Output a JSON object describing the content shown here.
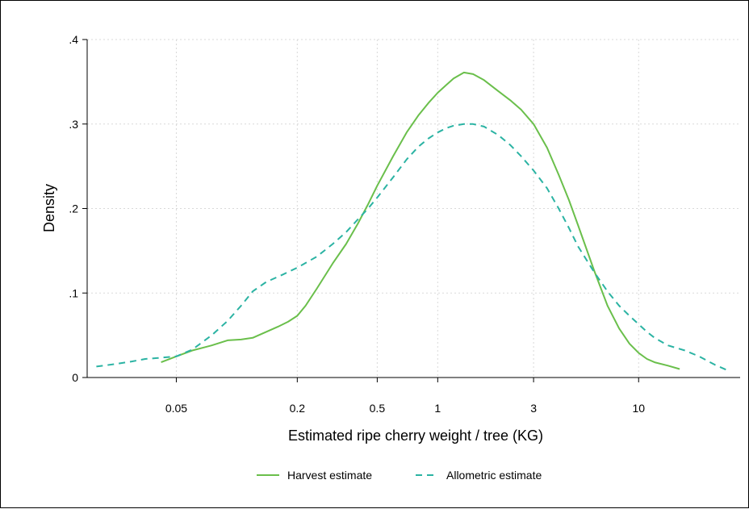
{
  "chart_data": {
    "type": "line",
    "xlabel": "Estimated ripe cherry weight / tree (KG)",
    "ylabel": "Density",
    "x_scale": "log",
    "xlim": [
      0.018,
      32
    ],
    "ylim": [
      0,
      0.4
    ],
    "x_ticks": [
      0.05,
      0.2,
      0.5,
      1,
      3,
      10
    ],
    "x_tick_labels": [
      "0.05",
      "0.2",
      "0.5",
      "1",
      "3",
      "10"
    ],
    "y_ticks": [
      0,
      0.1,
      0.2,
      0.3,
      0.4
    ],
    "y_tick_labels": [
      "0",
      ".1",
      ".2",
      ".3",
      ".4"
    ],
    "grid": "horizontal dotted",
    "legend_position": "bottom",
    "series": [
      {
        "name": "Harvest estimate",
        "color": "#6abf4b",
        "dash": "solid",
        "x": [
          0.042,
          0.05,
          0.06,
          0.075,
          0.09,
          0.105,
          0.12,
          0.14,
          0.16,
          0.18,
          0.2,
          0.22,
          0.25,
          0.3,
          0.35,
          0.4,
          0.45,
          0.5,
          0.6,
          0.7,
          0.8,
          0.9,
          1.0,
          1.1,
          1.2,
          1.35,
          1.5,
          1.7,
          2.0,
          2.3,
          2.6,
          3.0,
          3.5,
          4.0,
          4.5,
          5.0,
          6.0,
          7.0,
          8.0,
          9.0,
          10.0,
          11.0,
          12.0,
          14.0,
          16.0
        ],
        "y": [
          0.018,
          0.025,
          0.032,
          0.038,
          0.044,
          0.045,
          0.047,
          0.054,
          0.06,
          0.066,
          0.073,
          0.085,
          0.105,
          0.135,
          0.158,
          0.182,
          0.205,
          0.227,
          0.262,
          0.29,
          0.31,
          0.325,
          0.337,
          0.346,
          0.354,
          0.361,
          0.359,
          0.352,
          0.339,
          0.328,
          0.317,
          0.3,
          0.272,
          0.24,
          0.21,
          0.18,
          0.127,
          0.085,
          0.058,
          0.04,
          0.029,
          0.022,
          0.018,
          0.014,
          0.01
        ]
      },
      {
        "name": "Allometric estimate",
        "color": "#2bb3a3",
        "dash": "dashed",
        "x": [
          0.02,
          0.025,
          0.03,
          0.035,
          0.04,
          0.05,
          0.06,
          0.075,
          0.09,
          0.105,
          0.12,
          0.14,
          0.17,
          0.2,
          0.25,
          0.3,
          0.35,
          0.4,
          0.45,
          0.5,
          0.6,
          0.7,
          0.8,
          0.9,
          1.0,
          1.1,
          1.2,
          1.35,
          1.5,
          1.7,
          2.0,
          2.3,
          2.6,
          3.0,
          3.5,
          4.0,
          4.5,
          5.0,
          6.0,
          7.0,
          8.0,
          9.0,
          10.0,
          11.0,
          12.0,
          14.0,
          17.0,
          20.0,
          24.0,
          28.0
        ],
        "y": [
          0.013,
          0.016,
          0.019,
          0.022,
          0.023,
          0.025,
          0.033,
          0.05,
          0.067,
          0.085,
          0.102,
          0.113,
          0.122,
          0.13,
          0.143,
          0.158,
          0.172,
          0.187,
          0.2,
          0.213,
          0.237,
          0.258,
          0.273,
          0.283,
          0.29,
          0.295,
          0.298,
          0.3,
          0.3,
          0.297,
          0.287,
          0.275,
          0.262,
          0.245,
          0.224,
          0.2,
          0.177,
          0.155,
          0.125,
          0.102,
          0.085,
          0.073,
          0.063,
          0.054,
          0.047,
          0.038,
          0.032,
          0.025,
          0.015,
          0.008
        ]
      }
    ]
  }
}
